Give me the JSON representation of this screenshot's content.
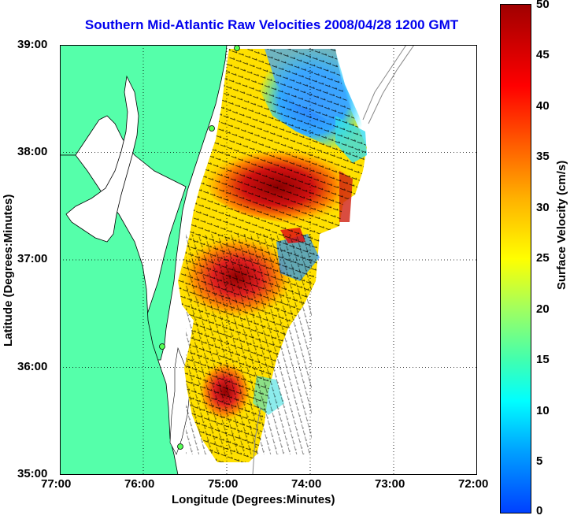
{
  "title": "Southern Mid-Atlantic Raw Velocities 2008/04/28 1200 GMT",
  "x_axis": {
    "label": "Longitude (Degrees:Minutes)",
    "ticks": [
      "77:00",
      "76:00",
      "75:00",
      "74:00",
      "73:00",
      "72:00"
    ]
  },
  "y_axis": {
    "label": "Latitude (Degrees:Minutes)",
    "ticks": [
      "39:00",
      "38:00",
      "37:00",
      "36:00",
      "35:00"
    ]
  },
  "colorbar": {
    "label": "Surface Velocity (cm/s)",
    "ticks": [
      "50",
      "45",
      "40",
      "35",
      "30",
      "25",
      "20",
      "15",
      "10",
      "5",
      "0"
    ],
    "range": [
      0,
      50
    ]
  },
  "colors": {
    "title": "#0000ee",
    "land": "#55ffaa",
    "water": "#ffffff"
  }
}
